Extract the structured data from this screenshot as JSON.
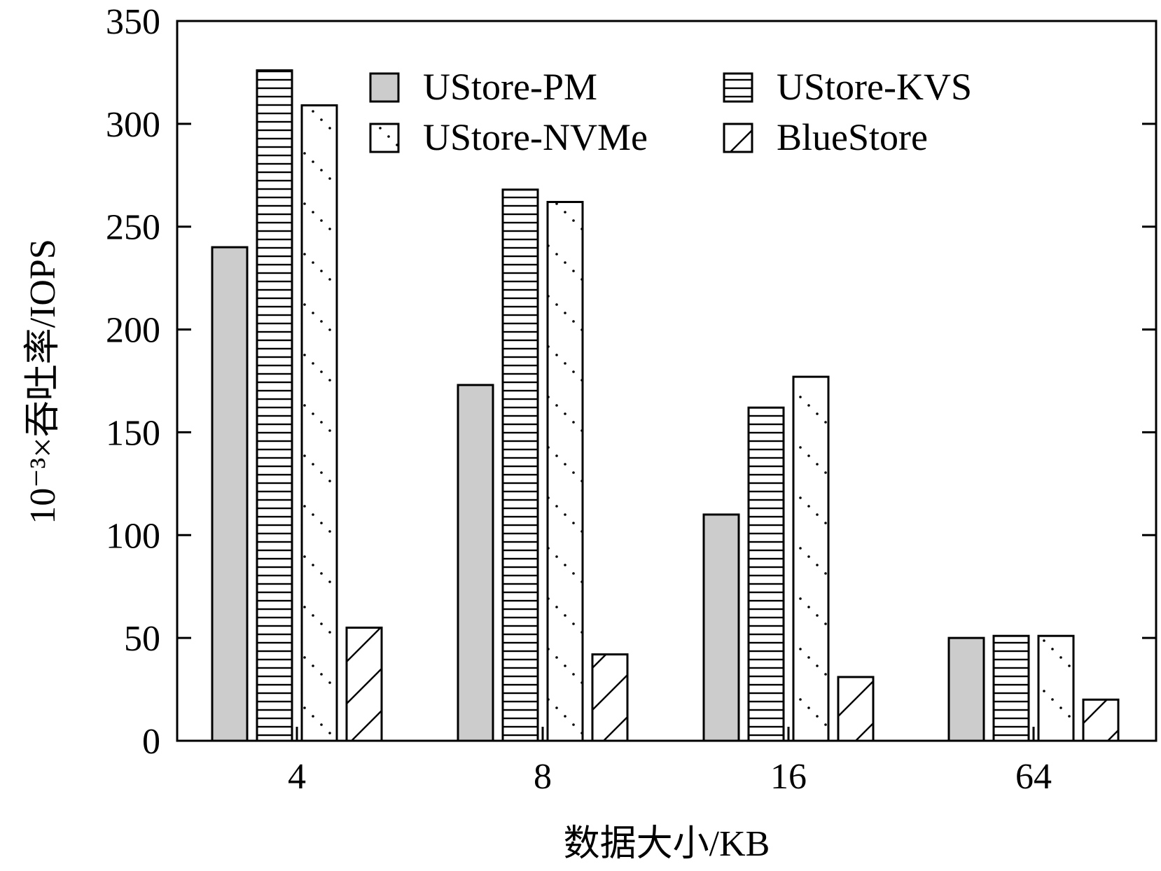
{
  "chart_data": {
    "type": "bar",
    "xlabel": "数据大小/KB",
    "ylabel": "10⁻³×吞吐率/IOPS",
    "categories": [
      "4",
      "8",
      "16",
      "64"
    ],
    "ylim": [
      0,
      350
    ],
    "yticks": [
      0,
      50,
      100,
      150,
      200,
      250,
      300,
      350
    ],
    "grid": false,
    "legend_position": "top-right",
    "series": [
      {
        "name": "UStore-PM",
        "pattern": "solid-gray",
        "color": "#cccccc",
        "values": [
          240,
          173,
          110,
          50
        ]
      },
      {
        "name": "UStore-KVS",
        "pattern": "horizontal-lines",
        "color": "#ffffff",
        "values": [
          326,
          268,
          162,
          51
        ]
      },
      {
        "name": "UStore-NVMe",
        "pattern": "dotted-diagonal",
        "color": "#ffffff",
        "values": [
          309,
          262,
          177,
          51
        ]
      },
      {
        "name": "BlueStore",
        "pattern": "diagonal-hatch",
        "color": "#ffffff",
        "values": [
          55,
          42,
          31,
          20
        ]
      }
    ]
  }
}
